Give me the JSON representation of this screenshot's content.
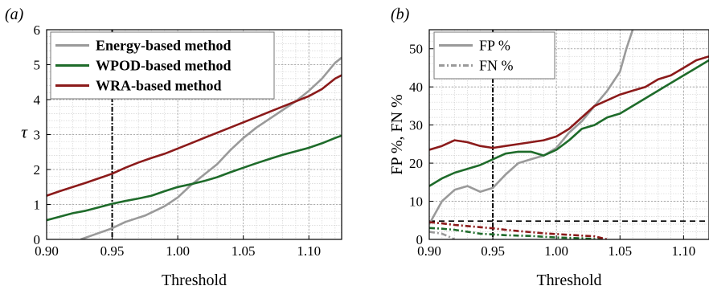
{
  "chart_data": [
    {
      "panel_label": "(a)",
      "type": "line",
      "xlabel": "Threshold",
      "ylabel": "τ",
      "xlim": [
        0.9,
        1.125
      ],
      "ylim": [
        0,
        6
      ],
      "xticks": [
        "0.90",
        "0.95",
        "1.00",
        "1.05",
        "1.10"
      ],
      "yticks": [
        "0",
        "1",
        "2",
        "3",
        "4",
        "5",
        "6"
      ],
      "grid": true,
      "legend_position": "top-left",
      "vline_x": 0.95,
      "series": [
        {
          "name": "Energy-based method",
          "color": "#9a9a9a",
          "dash": "solid",
          "x": [
            0.926,
            0.935,
            0.945,
            0.95,
            0.96,
            0.975,
            0.99,
            1.0,
            1.01,
            1.02,
            1.03,
            1.04,
            1.05,
            1.06,
            1.07,
            1.08,
            1.09,
            1.1,
            1.11,
            1.12,
            1.125
          ],
          "y": [
            0,
            0.12,
            0.25,
            0.32,
            0.5,
            0.68,
            0.95,
            1.2,
            1.55,
            1.85,
            2.15,
            2.55,
            2.9,
            3.2,
            3.45,
            3.7,
            3.95,
            4.25,
            4.6,
            5.05,
            5.2
          ]
        },
        {
          "name": "WPOD-based method",
          "color": "#1e6b2a",
          "dash": "solid",
          "x": [
            0.9,
            0.91,
            0.92,
            0.93,
            0.94,
            0.95,
            0.96,
            0.97,
            0.98,
            0.99,
            1.0,
            1.01,
            1.02,
            1.03,
            1.04,
            1.05,
            1.06,
            1.07,
            1.08,
            1.09,
            1.1,
            1.11,
            1.12,
            1.125
          ],
          "y": [
            0.55,
            0.65,
            0.75,
            0.82,
            0.92,
            1.02,
            1.1,
            1.17,
            1.25,
            1.38,
            1.5,
            1.58,
            1.67,
            1.78,
            1.92,
            2.05,
            2.18,
            2.3,
            2.42,
            2.52,
            2.62,
            2.75,
            2.9,
            2.97
          ]
        },
        {
          "name": "WRA-based method",
          "color": "#8b1a1a",
          "dash": "solid",
          "x": [
            0.9,
            0.91,
            0.92,
            0.93,
            0.94,
            0.95,
            0.96,
            0.97,
            0.98,
            0.99,
            1.0,
            1.01,
            1.02,
            1.03,
            1.04,
            1.05,
            1.06,
            1.07,
            1.08,
            1.09,
            1.1,
            1.11,
            1.12,
            1.125
          ],
          "y": [
            1.25,
            1.38,
            1.5,
            1.62,
            1.75,
            1.88,
            2.05,
            2.2,
            2.33,
            2.45,
            2.6,
            2.75,
            2.9,
            3.05,
            3.2,
            3.35,
            3.5,
            3.65,
            3.8,
            3.95,
            4.1,
            4.3,
            4.6,
            4.7
          ]
        }
      ]
    },
    {
      "panel_label": "(b)",
      "type": "line",
      "xlabel": "Threshold",
      "ylabel": "FP %, FN %",
      "xlim": [
        0.9,
        1.12
      ],
      "ylim": [
        0,
        55
      ],
      "xticks": [
        "0.90",
        "0.95",
        "1.00",
        "1.05",
        "1.10"
      ],
      "yticks": [
        "0",
        "10",
        "20",
        "30",
        "40",
        "50"
      ],
      "grid": true,
      "legend_position": "top-left",
      "vline_x": 0.95,
      "hline_y": 4.8,
      "legend_entries": [
        {
          "label": "FP %",
          "color": "#9a9a9a",
          "dash": "solid"
        },
        {
          "label": "FN %",
          "color": "#9a9a9a",
          "dash": "dashdot"
        }
      ],
      "series": [
        {
          "role": "FP",
          "color": "#9a9a9a",
          "dash": "solid",
          "x": [
            0.9,
            0.91,
            0.92,
            0.93,
            0.94,
            0.95,
            0.96,
            0.97,
            0.98,
            0.99,
            1.0,
            1.01,
            1.02,
            1.03,
            1.04,
            1.05,
            1.055,
            1.06
          ],
          "y": [
            4,
            10,
            13,
            14,
            12.5,
            13.5,
            17,
            20,
            21,
            22,
            24,
            28,
            31,
            35,
            39,
            44,
            50,
            55
          ]
        },
        {
          "role": "FP",
          "color": "#1e6b2a",
          "dash": "solid",
          "x": [
            0.9,
            0.91,
            0.92,
            0.93,
            0.94,
            0.95,
            0.96,
            0.97,
            0.98,
            0.99,
            1.0,
            1.01,
            1.02,
            1.03,
            1.04,
            1.05,
            1.06,
            1.07,
            1.08,
            1.09,
            1.1,
            1.11,
            1.12
          ],
          "y": [
            14,
            16,
            17.5,
            18.5,
            19.5,
            21,
            22.5,
            23,
            23,
            22,
            23.5,
            26,
            29,
            30,
            32,
            33,
            35,
            37,
            39,
            41,
            43,
            45,
            47
          ]
        },
        {
          "role": "FP",
          "color": "#8b1a1a",
          "dash": "solid",
          "x": [
            0.9,
            0.91,
            0.92,
            0.93,
            0.94,
            0.95,
            0.96,
            0.97,
            0.98,
            0.99,
            1.0,
            1.01,
            1.02,
            1.03,
            1.04,
            1.05,
            1.06,
            1.07,
            1.08,
            1.09,
            1.1,
            1.11,
            1.12
          ],
          "y": [
            23.5,
            24.5,
            26,
            25.5,
            24.5,
            24,
            24.5,
            25,
            25.5,
            26,
            27,
            29,
            32,
            35,
            36.5,
            38,
            39,
            40,
            42,
            43,
            45,
            47,
            48
          ]
        },
        {
          "role": "FN",
          "color": "#9a9a9a",
          "dash": "dashdot",
          "x": [
            0.9,
            0.91,
            0.915,
            0.92
          ],
          "y": [
            2,
            1.5,
            0.8,
            0
          ]
        },
        {
          "role": "FN",
          "color": "#1e6b2a",
          "dash": "dashdot",
          "x": [
            0.9,
            0.91,
            0.92,
            0.93,
            0.94,
            0.95,
            0.96,
            0.97,
            0.98,
            0.99,
            1.0,
            1.01,
            1.02,
            1.03,
            1.035
          ],
          "y": [
            3,
            2.8,
            2.5,
            2,
            1.5,
            1.3,
            1.1,
            1,
            0.9,
            0.7,
            0.5,
            0.4,
            0.3,
            0.1,
            0
          ]
        },
        {
          "role": "FN",
          "color": "#8b1a1a",
          "dash": "dashdot",
          "x": [
            0.9,
            0.91,
            0.92,
            0.93,
            0.94,
            0.95,
            0.96,
            0.97,
            0.98,
            0.99,
            1.0,
            1.01,
            1.02,
            1.03,
            1.04
          ],
          "y": [
            4.5,
            4.2,
            3.8,
            3.5,
            3.2,
            2.9,
            2.5,
            2.2,
            1.9,
            1.6,
            1.4,
            1.2,
            1,
            0.8,
            0
          ]
        }
      ]
    }
  ]
}
